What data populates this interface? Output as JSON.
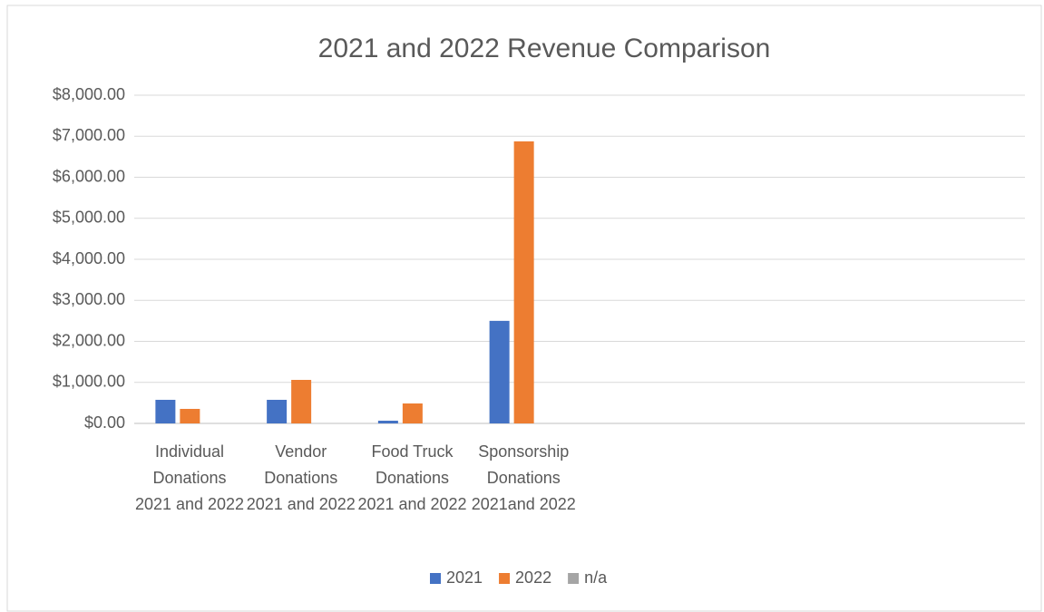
{
  "chart_data": {
    "type": "bar",
    "title": "2021 and 2022 Revenue Comparison",
    "categories": [
      "Individual Donations 2021 and 2022",
      "Vendor Donations 2021 and 2022",
      "Food Truck Donations 2021 and 2022",
      "Sponsorship Donations 2021and 2022",
      null,
      null,
      null,
      null
    ],
    "series": [
      {
        "name": "2021",
        "color": "#4472c4",
        "values": [
          575,
          575,
          66,
          2500,
          null,
          null,
          null,
          null
        ]
      },
      {
        "name": "2022",
        "color": "#ed7d31",
        "values": [
          354,
          1061,
          486,
          6875,
          null,
          null,
          null,
          null
        ]
      },
      {
        "name": "n/a",
        "color": "#a5a5a5",
        "values": [
          null,
          null,
          null,
          null,
          null,
          null,
          null,
          null
        ]
      }
    ],
    "ylim": [
      0,
      8000
    ],
    "yticks": [
      {
        "value": 0,
        "label": "$0.00"
      },
      {
        "value": 1000,
        "label": "$1,000.00"
      },
      {
        "value": 2000,
        "label": "$2,000.00"
      },
      {
        "value": 3000,
        "label": "$3,000.00"
      },
      {
        "value": 4000,
        "label": "$4,000.00"
      },
      {
        "value": 5000,
        "label": "$5,000.00"
      },
      {
        "value": 6000,
        "label": "$6,000.00"
      },
      {
        "value": 7000,
        "label": "$7,000.00"
      },
      {
        "value": 8000,
        "label": "$8,000.00"
      }
    ],
    "grid": true,
    "legend": "bottom"
  }
}
